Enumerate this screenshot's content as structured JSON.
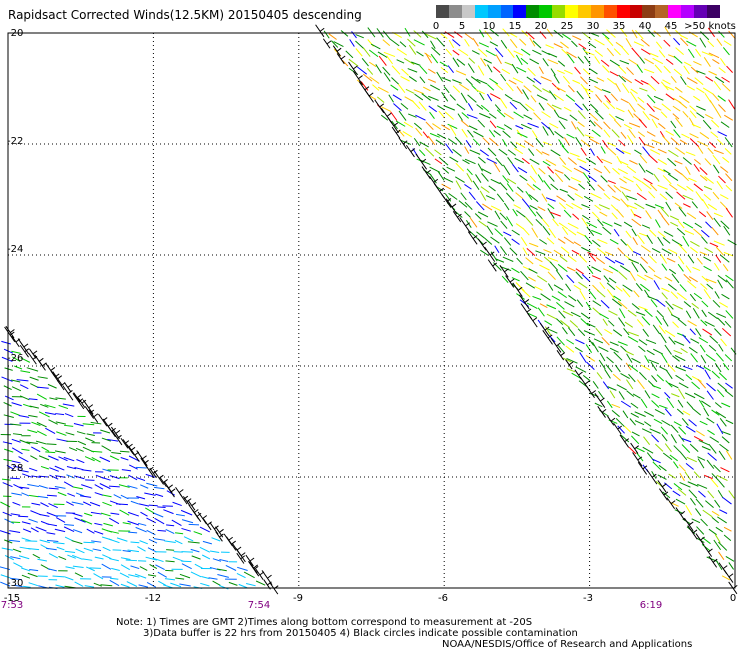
{
  "title": "Rapidsact Corrected Winds(12.5KM) 20150405 descending",
  "colorbar": {
    "labels": [
      "0",
      "5",
      "10",
      "15",
      "20",
      "25",
      "30",
      "35",
      "40",
      "45",
      ">50 knots"
    ],
    "colors": [
      "#4a4a4a",
      "#8c8c8c",
      "#c8c8c8",
      "#00c8ff",
      "#00a0ff",
      "#0064ff",
      "#0000ff",
      "#008c00",
      "#00c800",
      "#96dc00",
      "#ffff00",
      "#ffc800",
      "#ff9600",
      "#ff5000",
      "#ff0000",
      "#c80000",
      "#8c3c14",
      "#b46428",
      "#ff00ff",
      "#b400ff",
      "#6400b4",
      "#3c0064"
    ]
  },
  "map": {
    "lat_labels": [
      "-20",
      "-22",
      "-24",
      "-26",
      "-28",
      "-30"
    ],
    "lon_labels": [
      "-15",
      "-12",
      "-9",
      "-6",
      "-3",
      "0"
    ],
    "time_labels": [
      {
        "text": "7:53",
        "lon": -15
      },
      {
        "text": "7:54",
        "lon": -9.8
      },
      {
        "text": "6:19",
        "lon": -1.8
      }
    ],
    "lon_range": [
      -15,
      0
    ],
    "lat_range": [
      -30,
      -20
    ],
    "grid": "dotted",
    "swaths": [
      {
        "name": "east",
        "time": "6:19",
        "edge_from": {
          "lon": -8.5,
          "lat": -20
        },
        "edge_to": {
          "lon": 0,
          "lat": -30
        }
      },
      {
        "name": "west",
        "time": "7:53",
        "edge_from": {
          "lon": -15,
          "lat": -25.4
        },
        "edge_to": {
          "lon": -9.5,
          "lat": -30
        }
      }
    ]
  },
  "notes": [
    "Note: 1) Times are GMT 2)Times along bottom correspond to measurement at -20S",
    "3)Data buffer is 22 hrs from 20150405 4) Black circles indicate possible contamination",
    "NOAA/NESDIS/Office of Research and Applications"
  ]
}
